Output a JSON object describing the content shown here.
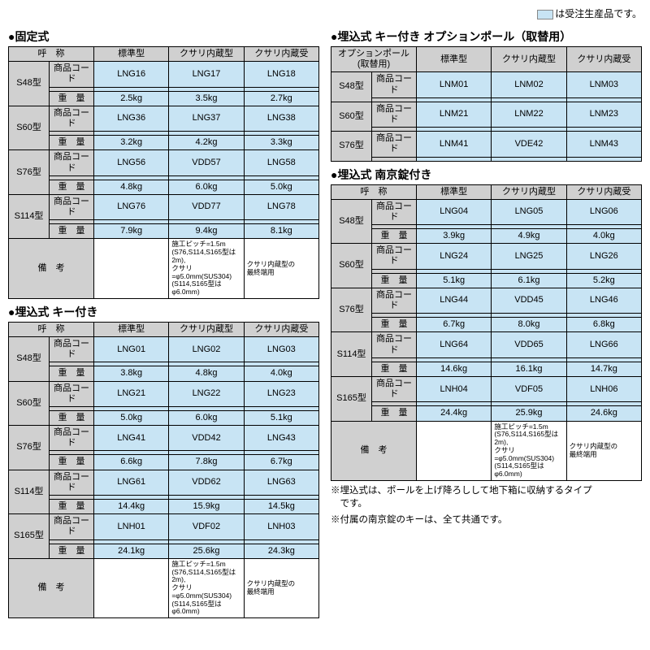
{
  "colors": {
    "header_bg": "#d0d0d0",
    "value_bg": "#c8e4f4",
    "border": "#000000",
    "text": "#000000",
    "page_bg": "#ffffff"
  },
  "legend": "は受注生産品です。",
  "columns_header": [
    "標準型",
    "クサリ内蔵型",
    "クサリ内蔵受"
  ],
  "label_model": "呼　称",
  "label_code": "商品コード",
  "label_weight": "重　量",
  "label_remarks": "備　考",
  "section_a": {
    "title": "●固定式",
    "rows": [
      {
        "model": "S48型",
        "codes": [
          "LNG16",
          "LNG17",
          "LNG18"
        ],
        "weights": [
          "2.5kg",
          "3.5kg",
          "2.7kg"
        ]
      },
      {
        "model": "S60型",
        "codes": [
          "LNG36",
          "LNG37",
          "LNG38"
        ],
        "weights": [
          "3.2kg",
          "4.2kg",
          "3.3kg"
        ]
      },
      {
        "model": "S76型",
        "codes": [
          "LNG56",
          "VDD57",
          "LNG58"
        ],
        "weights": [
          "4.8kg",
          "6.0kg",
          "5.0kg"
        ]
      },
      {
        "model": "S114型",
        "codes": [
          "LNG76",
          "VDD77",
          "LNG78"
        ],
        "weights": [
          "7.9kg",
          "9.4kg",
          "8.1kg"
        ]
      }
    ],
    "remarks": [
      "",
      "施工ピッチ=1.5m\n(S76,S114,S165型は2m),\nクサリ=φ5.0mm(SUS304)\n(S114,S165型はφ6.0mm)",
      "クサリ内蔵型の\n最終端用"
    ]
  },
  "section_b": {
    "title": "●埋込式 キー付き",
    "rows": [
      {
        "model": "S48型",
        "codes": [
          "LNG01",
          "LNG02",
          "LNG03"
        ],
        "weights": [
          "3.8kg",
          "4.8kg",
          "4.0kg"
        ]
      },
      {
        "model": "S60型",
        "codes": [
          "LNG21",
          "LNG22",
          "LNG23"
        ],
        "weights": [
          "5.0kg",
          "6.0kg",
          "5.1kg"
        ]
      },
      {
        "model": "S76型",
        "codes": [
          "LNG41",
          "VDD42",
          "LNG43"
        ],
        "weights": [
          "6.6kg",
          "7.8kg",
          "6.7kg"
        ]
      },
      {
        "model": "S114型",
        "codes": [
          "LNG61",
          "VDD62",
          "LNG63"
        ],
        "weights": [
          "14.4kg",
          "15.9kg",
          "14.5kg"
        ]
      },
      {
        "model": "S165型",
        "codes": [
          "LNH01",
          "VDF02",
          "LNH03"
        ],
        "weights": [
          "24.1kg",
          "25.6kg",
          "24.3kg"
        ]
      }
    ],
    "remarks": [
      "",
      "施工ピッチ=1.5m\n(S76,S114,S165型は2m),\nクサリ=φ5.0mm(SUS304)\n(S114,S165型はφ6.0mm)",
      "クサリ内蔵型の\n最終端用"
    ]
  },
  "section_c": {
    "title": "●埋込式 キー付き オプションポール（取替用）",
    "header_top": "オプションポール\n(取替用)",
    "rows": [
      {
        "model": "S48型",
        "codes": [
          "LNM01",
          "LNM02",
          "LNM03"
        ]
      },
      {
        "model": "S60型",
        "codes": [
          "LNM21",
          "LNM22",
          "LNM23"
        ]
      },
      {
        "model": "S76型",
        "codes": [
          "LNM41",
          "VDE42",
          "LNM43"
        ]
      }
    ]
  },
  "section_d": {
    "title": "●埋込式 南京錠付き",
    "rows": [
      {
        "model": "S48型",
        "codes": [
          "LNG04",
          "LNG05",
          "LNG06"
        ],
        "weights": [
          "3.9kg",
          "4.9kg",
          "4.0kg"
        ]
      },
      {
        "model": "S60型",
        "codes": [
          "LNG24",
          "LNG25",
          "LNG26"
        ],
        "weights": [
          "5.1kg",
          "6.1kg",
          "5.2kg"
        ]
      },
      {
        "model": "S76型",
        "codes": [
          "LNG44",
          "VDD45",
          "LNG46"
        ],
        "weights": [
          "6.7kg",
          "8.0kg",
          "6.8kg"
        ]
      },
      {
        "model": "S114型",
        "codes": [
          "LNG64",
          "VDD65",
          "LNG66"
        ],
        "weights": [
          "14.6kg",
          "16.1kg",
          "14.7kg"
        ]
      },
      {
        "model": "S165型",
        "codes": [
          "LNH04",
          "VDF05",
          "LNH06"
        ],
        "weights": [
          "24.4kg",
          "25.9kg",
          "24.6kg"
        ]
      }
    ],
    "remarks": [
      "",
      "施工ピッチ=1.5m\n(S76,S114,S165型は2m),\nクサリ=φ5.0mm(SUS304)\n(S114,S165型はφ6.0mm)",
      "クサリ内蔵型の\n最終端用"
    ]
  },
  "footer_notes": [
    "※埋込式は、ポールを上げ降ろしして地下箱に収納するタイプ\n　です。",
    "※付属の南京錠のキーは、全て共通です。"
  ]
}
